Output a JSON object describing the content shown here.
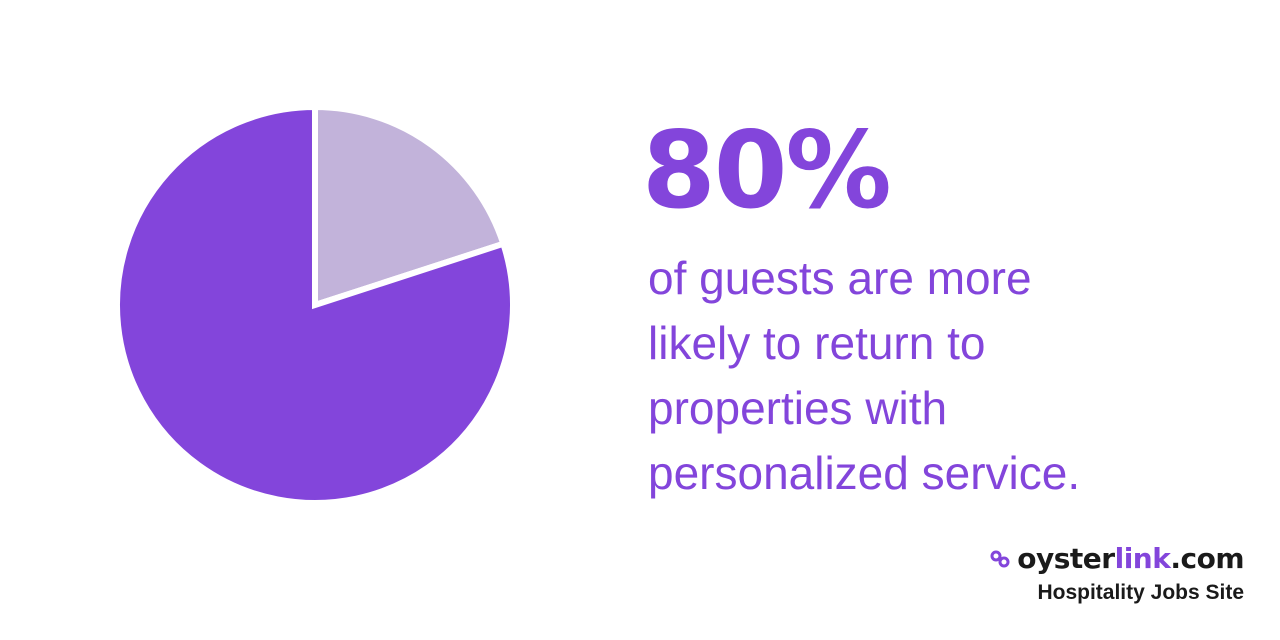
{
  "chart_data": {
    "type": "pie",
    "slices": [
      {
        "value": 80,
        "color": "#8345db"
      },
      {
        "value": 20,
        "color": "#c2b3da"
      }
    ],
    "start_angle_deg": 0
  },
  "stat": {
    "value": "80%",
    "lines": [
      "of guests are more",
      "likely to return to",
      "properties with",
      "personalized service."
    ]
  },
  "brand": {
    "name_part1": "oyster",
    "name_part2": "link",
    "name_part3": ".com",
    "tagline": "Hospitality Jobs Site"
  },
  "colors": {
    "accent": "#8345db",
    "accent_light": "#c2b3da",
    "dark": "#1a1a1a"
  }
}
